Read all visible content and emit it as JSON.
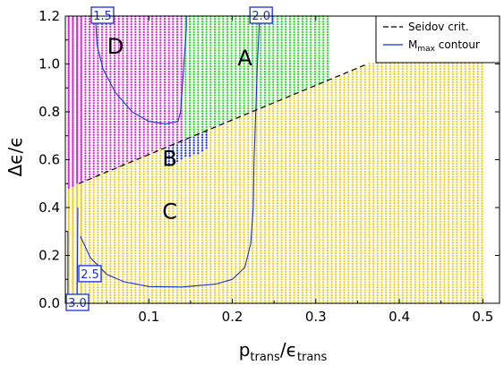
{
  "chart_data": {
    "type": "scatter",
    "xlabel": {
      "main": "p",
      "sub": "trans",
      "sep": "/",
      "main2": "ϵ",
      "sub2": "trans"
    },
    "ylabel": "Δϵ/ϵ",
    "xlim": [
      0.0,
      0.52
    ],
    "ylim": [
      0.0,
      1.2
    ],
    "xticks": [
      "0.1",
      "0.2",
      "0.3",
      "0.4",
      "0.5"
    ],
    "yticks": [
      "0.0",
      "0.2",
      "0.4",
      "0.6",
      "0.8",
      "1.0",
      "1.2"
    ],
    "grid": false,
    "legend_position": "top-right",
    "legend": [
      {
        "label": "Seidov crit.",
        "style": "dashed",
        "color": "#000000"
      },
      {
        "label_main": "M",
        "label_sub": "max",
        "label_rest": " contour",
        "style": "solid",
        "color": "#1a2fd0"
      }
    ],
    "regions": [
      {
        "label": "A",
        "color": "#22dd22",
        "at": [
          0.215,
          1.02
        ]
      },
      {
        "label": "B",
        "color": "#1a2fd0",
        "at": [
          0.125,
          0.6
        ]
      },
      {
        "label": "C",
        "color": "#f0cc1a",
        "at": [
          0.125,
          0.38
        ]
      },
      {
        "label": "D",
        "color": "#dd22dd",
        "at": [
          0.06,
          1.07
        ]
      }
    ],
    "seidov_line": {
      "x": [
        0.016,
        0.5
      ],
      "y": [
        0.5,
        1.2
      ]
    },
    "contours": [
      {
        "label": "1.5",
        "x": [
          0.036,
          0.038,
          0.045,
          0.06,
          0.08,
          0.1,
          0.12,
          0.135,
          0.138,
          0.14,
          0.142,
          0.144,
          0.145,
          0.145
        ],
        "y": [
          1.2,
          1.08,
          0.98,
          0.88,
          0.8,
          0.76,
          0.75,
          0.76,
          0.8,
          0.9,
          1.0,
          1.1,
          1.15,
          1.2
        ],
        "label_at": [
          0.03,
          1.2
        ]
      },
      {
        "label": "2.0",
        "x": [
          0.018,
          0.03,
          0.05,
          0.07,
          0.1,
          0.14,
          0.18,
          0.2,
          0.215,
          0.222,
          0.225,
          0.226,
          0.228,
          0.23,
          0.232,
          0.232
        ],
        "y": [
          0.28,
          0.19,
          0.12,
          0.09,
          0.07,
          0.068,
          0.08,
          0.1,
          0.15,
          0.25,
          0.4,
          0.6,
          0.8,
          1.0,
          1.15,
          1.2
        ],
        "label_at": [
          0.22,
          1.2
        ]
      },
      {
        "label": "2.5",
        "x": [
          0.014,
          0.015
        ],
        "y": [
          0.0,
          0.4
        ],
        "label_at": [
          0.015,
          0.12
        ]
      },
      {
        "label": "3.0",
        "x": [
          0.003,
          0.003
        ],
        "y": [
          0.0,
          0.3
        ],
        "label_at": [
          0.0,
          0.0
        ]
      }
    ]
  }
}
